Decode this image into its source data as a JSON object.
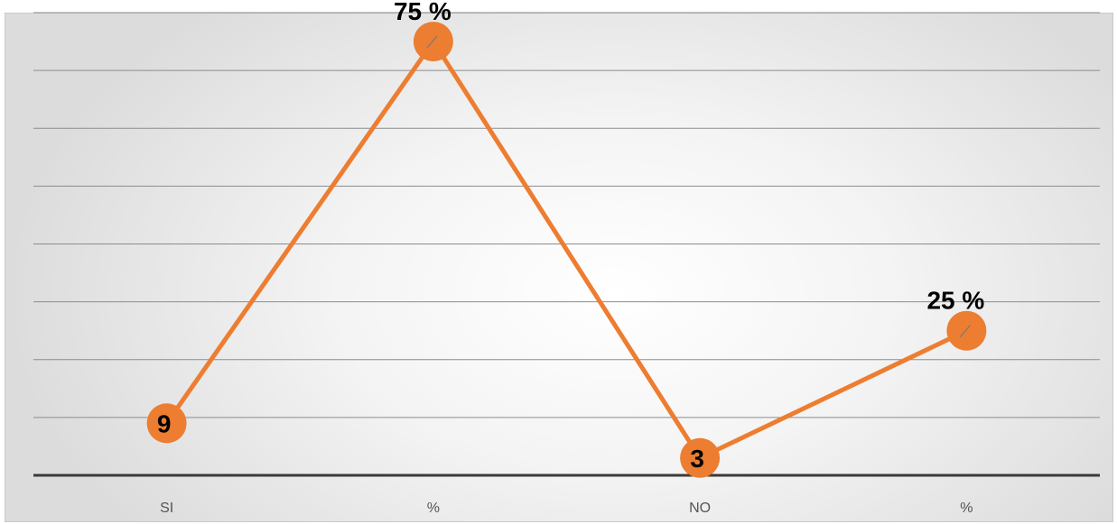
{
  "chart_data": {
    "type": "line",
    "categories": [
      "SI",
      "%",
      "NO",
      "%"
    ],
    "values": [
      9,
      75,
      3,
      25
    ],
    "data_labels": [
      "9",
      "75 %",
      "3",
      "25 %"
    ],
    "ylim": [
      0,
      80
    ],
    "grid": true,
    "gridline_count": 8,
    "legend": "none",
    "series_color": "#ED7D31"
  }
}
